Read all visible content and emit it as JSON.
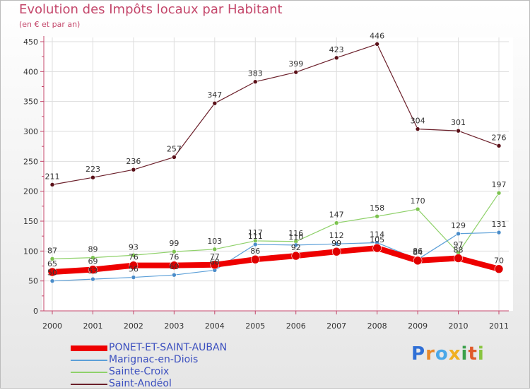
{
  "chart_data": {
    "type": "line",
    "title": "Evolution des Impôts locaux par Habitant",
    "subtitle": "(en € et par an)",
    "xlabel": "",
    "ylabel": "",
    "ylim": [
      0,
      450
    ],
    "yticks": [
      0,
      50,
      100,
      150,
      200,
      250,
      300,
      350,
      400,
      450
    ],
    "categories": [
      "2000",
      "2001",
      "2002",
      "2003",
      "2004",
      "2005",
      "2006",
      "2007",
      "2008",
      "2009",
      "2010",
      "2011"
    ],
    "series": [
      {
        "name": "Saint-Andéol",
        "color": "#6b1f2a",
        "point_color": "#5a1018",
        "values": [
          211,
          223,
          236,
          257,
          347,
          383,
          399,
          423,
          446,
          304,
          301,
          276
        ]
      },
      {
        "name": "Sainte-Croix",
        "color": "#8fd16a",
        "point_color": "#7cc24f",
        "values": [
          87,
          89,
          93,
          99,
          103,
          117,
          116,
          147,
          158,
          170,
          97,
          197
        ]
      },
      {
        "name": "Marignac-en-Diois",
        "color": "#5b9fd8",
        "point_color": "#4a8cc9",
        "values": [
          50,
          53,
          56,
          60,
          68,
          111,
          110,
          112,
          114,
          86,
          129,
          131
        ]
      },
      {
        "name": "PONET-ET-SAINT-AUBAN",
        "color": "#ee0000",
        "point_color": "#e00000",
        "values": [
          65,
          69,
          76,
          76,
          77,
          86,
          92,
          99,
          105,
          84,
          88,
          70
        ]
      }
    ],
    "legend_order": [
      "PONET-ET-SAINT-AUBAN",
      "Marignac-en-Diois",
      "Sainte-Croix",
      "Saint-Andéol"
    ],
    "legend_position": "bottom-left"
  },
  "logo": {
    "letters": [
      "P",
      "r",
      "o",
      "x",
      "i",
      "t",
      "i"
    ],
    "colors": [
      "#2f6fd6",
      "#e8892b",
      "#4aa8e8",
      "#f0b020",
      "#3aa04a",
      "#e05a2a",
      "#89c540"
    ]
  }
}
